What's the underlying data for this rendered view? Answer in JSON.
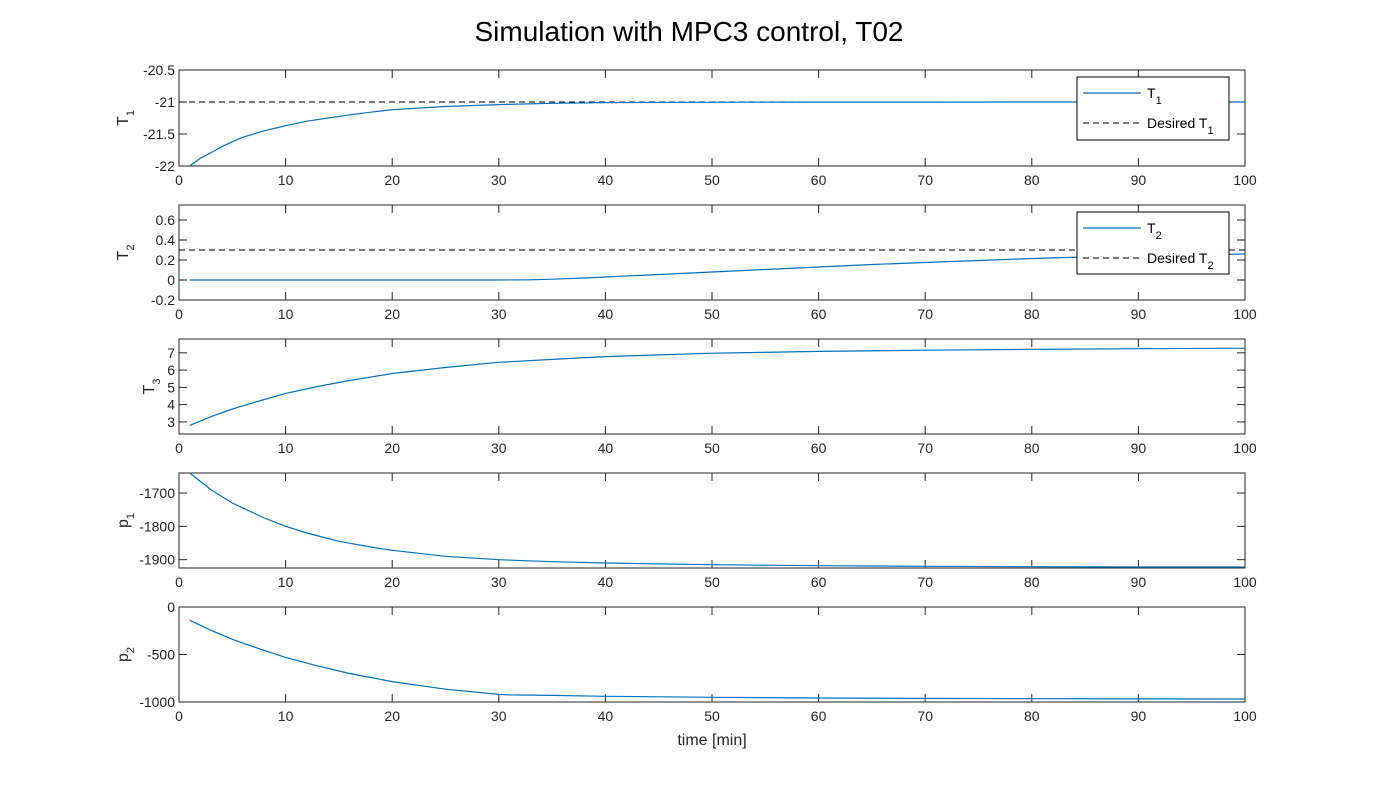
{
  "chart_data": {
    "type": "line",
    "title": "Simulation with MPC3 control, T02",
    "xlabel": "time [min]",
    "xlim": [
      0,
      100
    ],
    "xticks": [
      0,
      10,
      20,
      30,
      40,
      50,
      60,
      70,
      80,
      90,
      100
    ],
    "colors": {
      "series": "#0072BD",
      "reference": "#000000",
      "axes": "#262626"
    },
    "subplots": [
      {
        "ylabel": "T",
        "ylabel_sub": "1",
        "ylim": [
          -22,
          -20.5
        ],
        "yticks": [
          -22,
          -21.5,
          -21,
          -20.5
        ],
        "ytick_labels": [
          "-22",
          "-21.5",
          "-21",
          "-20.5"
        ],
        "series": {
          "name": "T",
          "name_sub": "1",
          "x": [
            1,
            2,
            3,
            4,
            5,
            6,
            8,
            10,
            12,
            14,
            16,
            18,
            20,
            25,
            30,
            35,
            40,
            50,
            60,
            70,
            80,
            90,
            100
          ],
          "y": [
            -22,
            -21.88,
            -21.79,
            -21.7,
            -21.62,
            -21.55,
            -21.45,
            -21.37,
            -21.3,
            -21.25,
            -21.2,
            -21.16,
            -21.12,
            -21.07,
            -21.04,
            -21.02,
            -21.01,
            -21.005,
            -21.002,
            -21.001,
            -21.0,
            -21.0,
            -21.0
          ]
        },
        "reference": {
          "name": "Desired T",
          "name_sub": "1",
          "value": -21
        },
        "legend": "top-right"
      },
      {
        "ylabel": "T",
        "ylabel_sub": "2",
        "ylim": [
          -0.2,
          0.75
        ],
        "yticks": [
          -0.2,
          0,
          0.2,
          0.4,
          0.6
        ],
        "ytick_labels": [
          "-0.2",
          "0",
          "0.2",
          "0.4",
          "0.6"
        ],
        "series": {
          "name": "T",
          "name_sub": "2",
          "x": [
            1,
            5,
            10,
            15,
            20,
            25,
            30,
            33,
            35,
            38,
            40,
            45,
            50,
            55,
            60,
            65,
            70,
            75,
            80,
            85,
            90,
            95,
            100
          ],
          "y": [
            0,
            0,
            0,
            0,
            0,
            0,
            0,
            0.002,
            0.008,
            0.02,
            0.03,
            0.055,
            0.08,
            0.105,
            0.13,
            0.155,
            0.175,
            0.195,
            0.215,
            0.23,
            0.24,
            0.25,
            0.26
          ]
        },
        "reference": {
          "name": "Desired T",
          "name_sub": "2",
          "value": 0.3
        },
        "legend": "top-right"
      },
      {
        "ylabel": "T",
        "ylabel_sub": "3",
        "ylim": [
          2.3,
          7.8
        ],
        "yticks": [
          3,
          4,
          5,
          6,
          7
        ],
        "ytick_labels": [
          "3",
          "4",
          "5",
          "6",
          "7"
        ],
        "series": {
          "name": "T",
          "name_sub": "3",
          "x": [
            1,
            3,
            5,
            8,
            10,
            13,
            16,
            20,
            25,
            30,
            35,
            40,
            45,
            50,
            60,
            70,
            80,
            90,
            100
          ],
          "y": [
            2.8,
            3.3,
            3.75,
            4.3,
            4.65,
            5.05,
            5.4,
            5.8,
            6.15,
            6.45,
            6.62,
            6.78,
            6.88,
            6.98,
            7.08,
            7.15,
            7.2,
            7.24,
            7.27
          ]
        }
      },
      {
        "ylabel": "p",
        "ylabel_sub": "1",
        "ylim": [
          -1925,
          -1640
        ],
        "yticks": [
          -1900,
          -1800,
          -1700
        ],
        "ytick_labels": [
          "-1900",
          "-1800",
          "-1700"
        ],
        "series": {
          "name": "p",
          "name_sub": "1",
          "x": [
            1,
            3,
            5,
            8,
            10,
            12,
            15,
            18,
            20,
            25,
            30,
            35,
            40,
            50,
            60,
            70,
            80,
            90,
            100
          ],
          "y": [
            -1640,
            -1690,
            -1730,
            -1775,
            -1800,
            -1820,
            -1845,
            -1862,
            -1872,
            -1890,
            -1900,
            -1906,
            -1910,
            -1915,
            -1918,
            -1920,
            -1921,
            -1922,
            -1922
          ]
        }
      },
      {
        "ylabel": "p",
        "ylabel_sub": "2",
        "ylim": [
          -1000,
          0
        ],
        "yticks": [
          -1000,
          -500,
          0
        ],
        "ytick_labels": [
          "-1000",
          "-500",
          "0"
        ],
        "series": {
          "name": "p",
          "name_sub": "2",
          "x": [
            1,
            3,
            5,
            7,
            10,
            13,
            16,
            20,
            25,
            30,
            31,
            35,
            40,
            50,
            60,
            70,
            80,
            90,
            100
          ],
          "y": [
            -140,
            -245,
            -340,
            -420,
            -530,
            -620,
            -700,
            -785,
            -865,
            -920,
            -925,
            -930,
            -940,
            -950,
            -958,
            -962,
            -965,
            -967,
            -968
          ]
        }
      }
    ]
  }
}
